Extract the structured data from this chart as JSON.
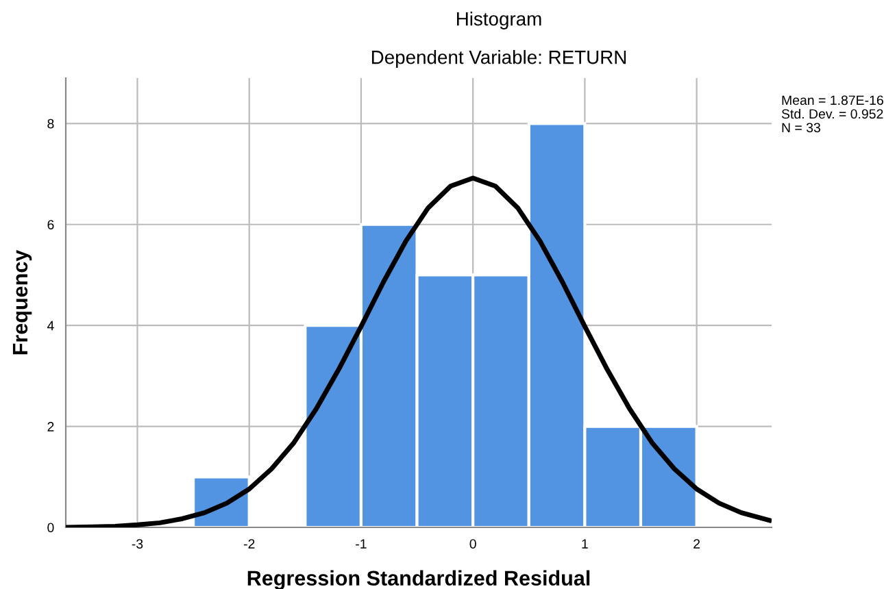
{
  "chart_data": {
    "type": "histogram",
    "title": "Histogram",
    "subtitle": "Dependent Variable: RETURN",
    "xlabel": "Regression Standardized Residual",
    "ylabel": "Frequency",
    "bins": [
      -2.5,
      -2.0,
      -1.5,
      -1.0,
      -0.5,
      0.0,
      0.5,
      1.0,
      1.5,
      2.0
    ],
    "values": [
      1,
      0,
      4,
      6,
      5,
      5,
      8,
      2,
      2
    ],
    "color": "#5294e2",
    "series": [
      {
        "type": "line",
        "color": "#000000",
        "x": [
          -3.64,
          -3.4,
          -3.2,
          -3.0,
          -2.8,
          -2.6,
          -2.4,
          -2.2,
          -2.0,
          -1.8,
          -1.6,
          -1.4,
          -1.2,
          -1.0,
          -0.8,
          -0.6,
          -0.4,
          -0.2,
          0.0,
          0.2,
          0.4,
          0.6,
          0.8,
          1.0,
          1.2,
          1.4,
          1.6,
          1.8,
          2.0,
          2.2,
          2.4,
          2.65
        ],
        "values": [
          0.0,
          0.01,
          0.02,
          0.05,
          0.09,
          0.17,
          0.29,
          0.48,
          0.76,
          1.16,
          1.68,
          2.35,
          3.13,
          3.98,
          4.86,
          5.67,
          6.33,
          6.76,
          6.92,
          6.76,
          6.33,
          5.67,
          4.86,
          3.98,
          3.13,
          2.35,
          1.68,
          1.16,
          0.76,
          0.48,
          0.29,
          0.14
        ]
      }
    ],
    "xlim": [
      -3.64,
      2.67
    ],
    "xticks": [
      -3,
      -2,
      -1,
      0,
      1,
      2
    ],
    "ylim": [
      0,
      8.9
    ],
    "yticks": [
      0,
      2,
      4,
      6,
      8
    ],
    "grid": true,
    "annotations": [
      "Mean = 1.87E-16",
      "Std. Dev. = 0.952",
      "N = 33"
    ]
  }
}
